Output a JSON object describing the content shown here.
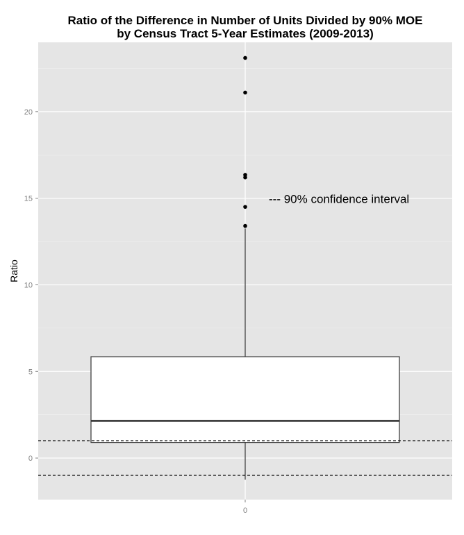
{
  "chart_data": {
    "type": "box",
    "title_lines": [
      "Ratio of the Difference in Number of Units Divided by 90% MOE",
      "by Census Tract 5-Year Estimates (2009-2013)"
    ],
    "xlabel": "",
    "ylabel": "Ratio",
    "x_ticks": [
      "0"
    ],
    "y_ticks": [
      0,
      5,
      10,
      15,
      20
    ],
    "ylim": [
      -2.4,
      24
    ],
    "grid": true,
    "box": {
      "x": "0",
      "lower_whisker": -1.25,
      "q1": 0.9,
      "median": 2.15,
      "q3": 5.85,
      "upper_whisker": 13.25,
      "outliers": [
        13.4,
        14.5,
        16.2,
        16.35,
        21.1,
        23.1
      ]
    },
    "reference_lines": [
      1,
      -1
    ],
    "annotation": "--- 90% confidence interval",
    "annotation_at": {
      "y": 15
    },
    "colors": {
      "panel": "#e5e5e5",
      "grid": "#ffffff",
      "box_fill": "#ffffff",
      "box_stroke": "#333333",
      "median": "#333333",
      "reference": "#000000"
    }
  }
}
